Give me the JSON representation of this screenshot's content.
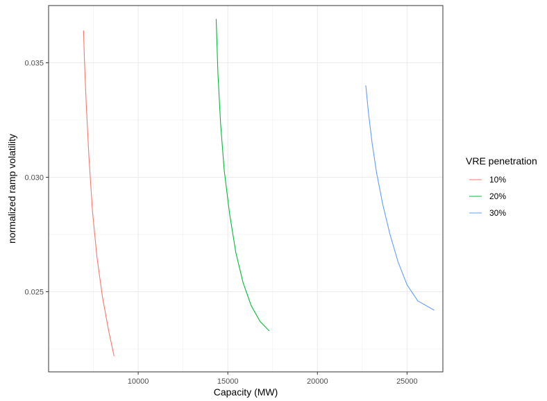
{
  "chart_data": {
    "type": "line",
    "title": "",
    "xlabel": "Capacity (MW)",
    "ylabel": "normalized ramp volatility",
    "xlim": [
      5000,
      27000
    ],
    "ylim": [
      0.0215,
      0.0375
    ],
    "x_ticks": [
      10000,
      15000,
      20000,
      25000
    ],
    "x_tick_labels": [
      "10000",
      "15000",
      "20000",
      "25000"
    ],
    "y_ticks": [
      0.025,
      0.03,
      0.035
    ],
    "y_tick_labels": [
      "0.025",
      "0.030",
      "0.035"
    ],
    "grid": true,
    "legend_title": "VRE penetration",
    "legend_position": "right",
    "series": [
      {
        "name": "10%",
        "color": "#F8766D",
        "points": [
          [
            6950,
            0.0364
          ],
          [
            7000,
            0.0351
          ],
          [
            7100,
            0.0332
          ],
          [
            7250,
            0.0309
          ],
          [
            7450,
            0.0285
          ],
          [
            7700,
            0.0265
          ],
          [
            8000,
            0.0248
          ],
          [
            8350,
            0.0233
          ],
          [
            8650,
            0.0222
          ]
        ]
      },
      {
        "name": "20%",
        "color": "#00BA38",
        "points": [
          [
            14350,
            0.0369
          ],
          [
            14450,
            0.0345
          ],
          [
            14600,
            0.0323
          ],
          [
            14800,
            0.0303
          ],
          [
            15100,
            0.0284
          ],
          [
            15450,
            0.0267
          ],
          [
            15850,
            0.0254
          ],
          [
            16300,
            0.0244
          ],
          [
            16800,
            0.0237
          ],
          [
            17300,
            0.0233
          ]
        ]
      },
      {
        "name": "30%",
        "color": "#619CFF",
        "points": [
          [
            22700,
            0.034
          ],
          [
            22850,
            0.0328
          ],
          [
            23050,
            0.0315
          ],
          [
            23300,
            0.0302
          ],
          [
            23650,
            0.0288
          ],
          [
            24050,
            0.0275
          ],
          [
            24500,
            0.0263
          ],
          [
            25000,
            0.0253
          ],
          [
            25600,
            0.0246
          ],
          [
            26500,
            0.0242
          ]
        ]
      }
    ]
  }
}
